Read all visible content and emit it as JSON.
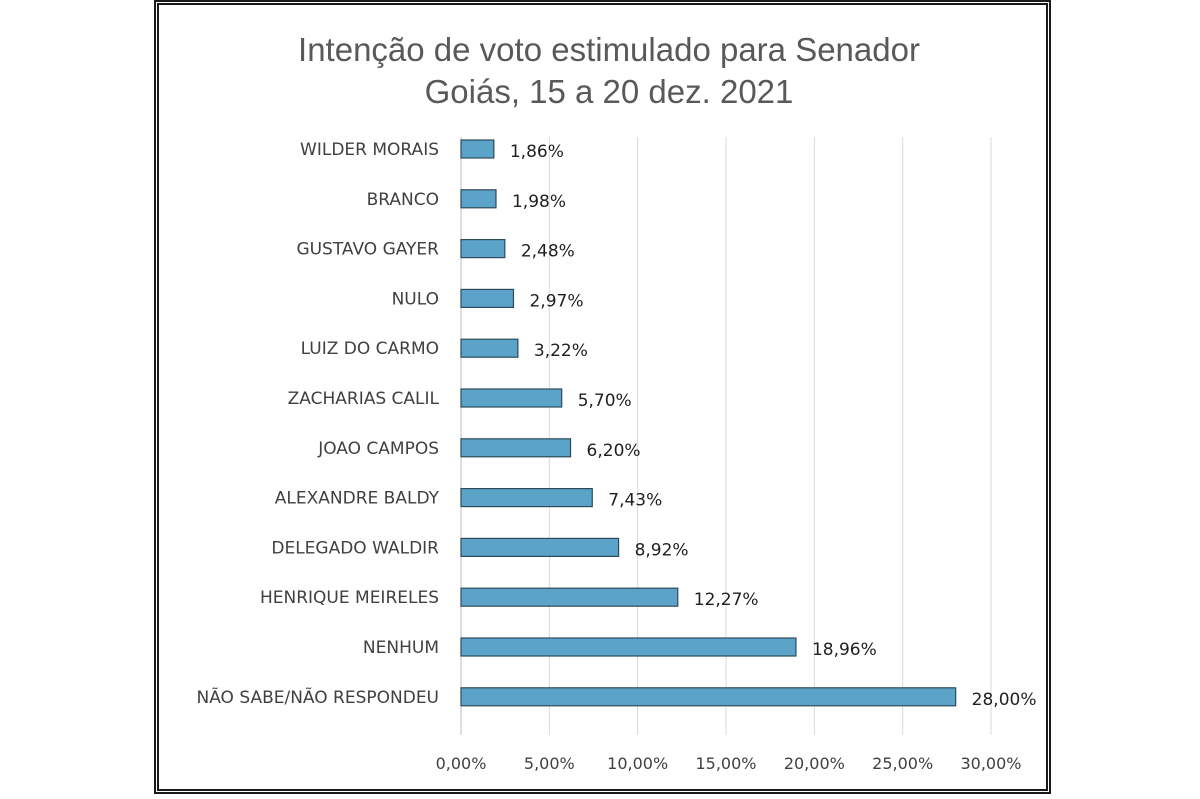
{
  "chart_data": {
    "type": "bar",
    "orientation": "horizontal",
    "title": [
      "Intenção de voto estimulado para Senador",
      "Goiás, 15 a 20 dez. 2021"
    ],
    "categories": [
      "WILDER MORAIS",
      "BRANCO",
      "GUSTAVO GAYER",
      "NULO",
      "LUIZ DO CARMO",
      "ZACHARIAS CALIL",
      "JOAO CAMPOS",
      "ALEXANDRE BALDY",
      "DELEGADO WALDIR",
      "HENRIQUE MEIRELES",
      "NENHUM",
      "NÃO SABE/NÃO RESPONDEU"
    ],
    "values": [
      1.86,
      1.98,
      2.48,
      2.97,
      3.22,
      5.7,
      6.2,
      7.43,
      8.92,
      12.27,
      18.96,
      28.0
    ],
    "value_labels": [
      "1,86%",
      "1,98%",
      "2,48%",
      "2,97%",
      "3,22%",
      "5,70%",
      "6,20%",
      "7,43%",
      "8,92%",
      "12,27%",
      "18,96%",
      "28,00%"
    ],
    "xlim": [
      0,
      30
    ],
    "x_ticks": [
      0,
      5,
      10,
      15,
      20,
      25,
      30
    ],
    "x_tick_labels": [
      "0,00%",
      "5,00%",
      "10,00%",
      "15,00%",
      "20,00%",
      "25,00%",
      "30,00%"
    ],
    "xlabel": "",
    "ylabel": "",
    "grid": true,
    "legend": "none",
    "colors": {
      "bar_fill": "#5ba3c9",
      "bar_edge": "#2e4a5a",
      "grid": "#d9d9d9",
      "title": "#595959"
    }
  }
}
